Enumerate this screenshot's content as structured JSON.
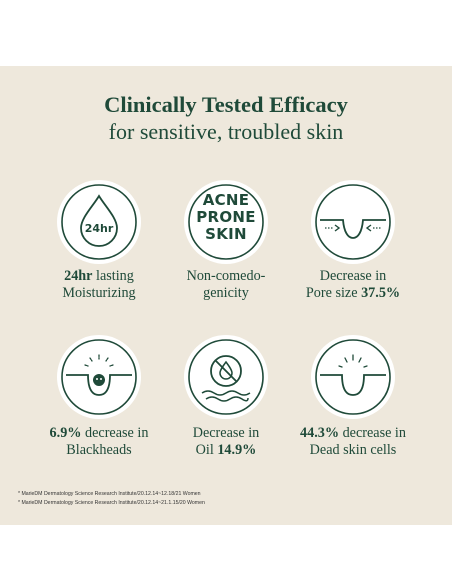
{
  "heading": {
    "line1": "Clinically Tested Efficacy",
    "line2": "for sensitive, troubled skin"
  },
  "features": [
    {
      "bold_prefix": "24hr",
      "text_after": " lasting",
      "line2": "Moisturizing",
      "icon": "water-drop-24hr-icon",
      "icon_text": "24hr"
    },
    {
      "line1": "Non-comedo-",
      "line2": "genicity",
      "icon": "acne-prone-skin-badge",
      "badge_lines": [
        "ACNE",
        "PRONE",
        "SKIN"
      ]
    },
    {
      "line1": "Decrease in",
      "line2_text": "Pore size ",
      "line2_bold": "37.5%",
      "icon": "pore-shrink-icon"
    },
    {
      "line1_bold": "6.9%",
      "line1_text": " decrease in",
      "line2": "Blackheads",
      "icon": "blackhead-pore-icon"
    },
    {
      "line1": "Decrease in",
      "line2_text": "Oil ",
      "line2_bold": "14.9%",
      "icon": "no-oil-icon"
    },
    {
      "line1_bold": "44.3%",
      "line1_text": " decrease in",
      "line2": "Dead skin cells",
      "icon": "dead-skin-icon"
    }
  ],
  "footnotes": [
    "* MarieDM Dermatology Science Research Institute/20.12.14~12.18/21 Women",
    "* MarieDM Dermatology Science Research Institute/20.12.14~21.1.15/20 Women"
  ],
  "colors": {
    "background_band": "#eee8dc",
    "primary_green": "#1f4a39",
    "circle_fill": "#ffffff"
  }
}
